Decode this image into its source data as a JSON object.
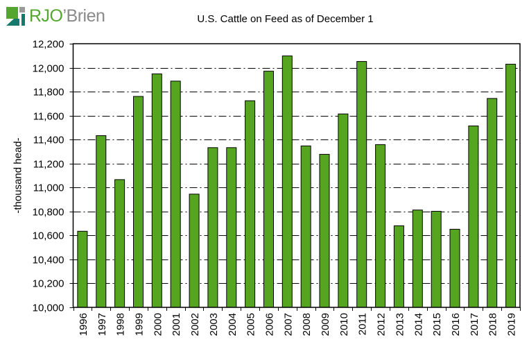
{
  "logo": {
    "brand_primary": "RJO",
    "brand_secondary": "’Brien",
    "colors": {
      "green": "#55a630",
      "teal": "#147a6b",
      "gray": "#9a9a9a"
    }
  },
  "chart_data": {
    "type": "bar",
    "title": "U.S. Cattle on Feed as of December 1",
    "xlabel": "",
    "ylabel": "-thousand head-",
    "ylim": [
      10000,
      12200
    ],
    "y_ticks": [
      10000,
      10200,
      10400,
      10600,
      10800,
      11000,
      11200,
      11400,
      11600,
      11800,
      12000,
      12200
    ],
    "y_tick_labels": [
      "10,000",
      "10,200",
      "10,400",
      "10,600",
      "10,800",
      "11,000",
      "11,200",
      "11,400",
      "11,600",
      "11,800",
      "12,000",
      "12,200"
    ],
    "grid": "horizontal dash-dot",
    "legend": "none",
    "bar_color": "#56a520",
    "categories": [
      "1996",
      "1997",
      "1998",
      "1999",
      "2000",
      "2001",
      "2002",
      "2003",
      "2004",
      "2005",
      "2006",
      "2007",
      "2008",
      "2009",
      "2010",
      "2011",
      "2012",
      "2013",
      "2014",
      "2015",
      "2016",
      "2017",
      "2018",
      "2019"
    ],
    "values": [
      10635,
      11433,
      11066,
      11760,
      11948,
      11888,
      10945,
      11333,
      11333,
      11724,
      11971,
      12098,
      11347,
      11277,
      11614,
      12052,
      11358,
      10681,
      10812,
      10802,
      10652,
      11514,
      11743,
      12029
    ]
  }
}
